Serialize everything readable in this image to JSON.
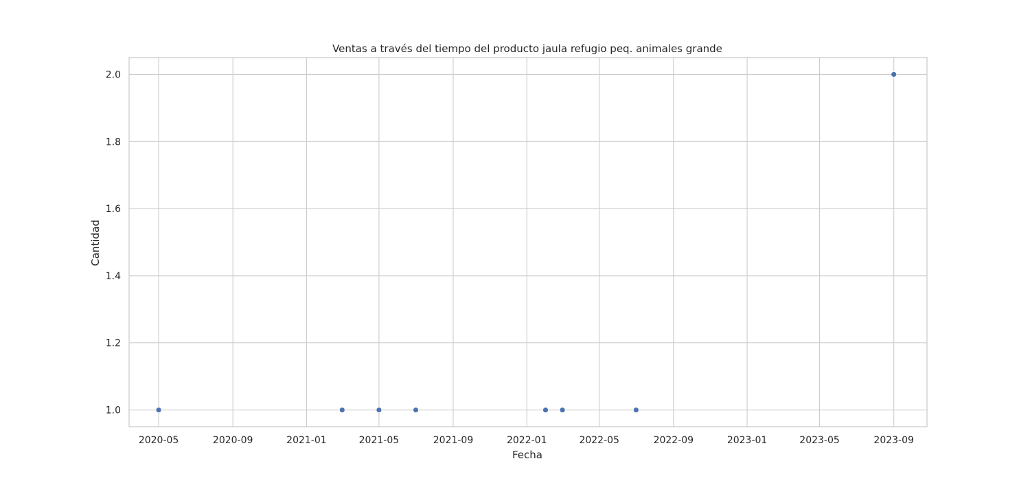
{
  "chart_data": {
    "type": "scatter",
    "title": "Ventas a través del tiempo del producto jaula refugio peq. animales grande",
    "xlabel": "Fecha",
    "ylabel": "Cantidad",
    "x_axis_type": "date",
    "xlim": [
      "2020-03-13",
      "2023-10-26"
    ],
    "ylim": [
      0.95,
      2.05
    ],
    "grid": true,
    "x_ticks": [
      "2020-05",
      "2020-09",
      "2021-01",
      "2021-05",
      "2021-09",
      "2022-01",
      "2022-05",
      "2022-09",
      "2023-01",
      "2023-05",
      "2023-09"
    ],
    "y_ticks": [
      "1.0",
      "1.2",
      "1.4",
      "1.6",
      "1.8",
      "2.0"
    ],
    "series": [
      {
        "color": "#4c72b0",
        "points": [
          {
            "x": "2020-05-01",
            "y": 1
          },
          {
            "x": "2021-03-01",
            "y": 1
          },
          {
            "x": "2021-05-01",
            "y": 1
          },
          {
            "x": "2021-07-01",
            "y": 1
          },
          {
            "x": "2022-02-01",
            "y": 1
          },
          {
            "x": "2022-03-01",
            "y": 1
          },
          {
            "x": "2022-07-01",
            "y": 1
          },
          {
            "x": "2023-09-01",
            "y": 2
          }
        ]
      }
    ]
  },
  "colors": {
    "grid": "#cccccc",
    "frame": "#cccccc",
    "text": "#262626",
    "background": "#ffffff"
  }
}
